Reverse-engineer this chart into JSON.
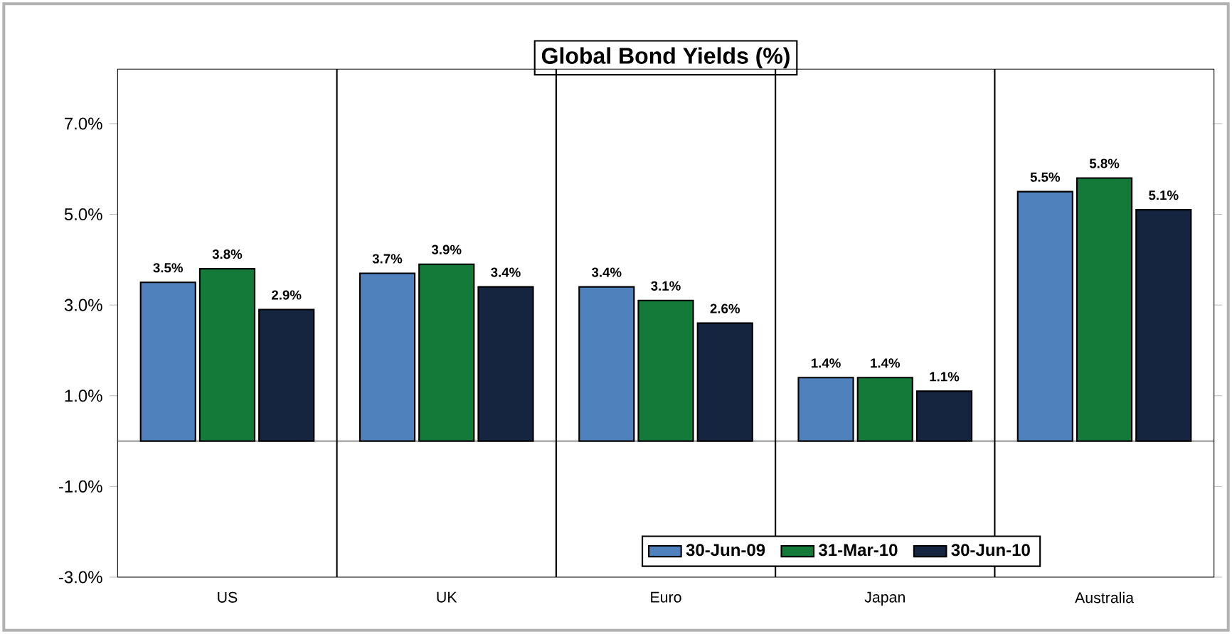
{
  "chart_data": {
    "type": "bar",
    "title": "Global Bond Yields (%)",
    "categories": [
      "US",
      "UK",
      "Euro",
      "Japan",
      "Australia"
    ],
    "series": [
      {
        "name": "30-Jun-09",
        "color": "#4f81bd",
        "values": [
          3.5,
          3.7,
          3.4,
          1.4,
          5.5
        ],
        "value_labels": [
          "3.5%",
          "3.7%",
          "3.4%",
          "1.4%",
          "5.5%"
        ]
      },
      {
        "name": "31-Mar-10",
        "color": "#137a3a",
        "values": [
          3.8,
          3.9,
          3.1,
          1.4,
          5.8
        ],
        "value_labels": [
          "3.8%",
          "3.9%",
          "3.1%",
          "1.4%",
          "5.8%"
        ]
      },
      {
        "name": "30-Jun-10",
        "color": "#15243f",
        "values": [
          2.9,
          3.4,
          2.6,
          1.1,
          5.1
        ],
        "value_labels": [
          "2.9%",
          "3.4%",
          "2.6%",
          "1.1%",
          "5.1%"
        ]
      }
    ],
    "ylim": [
      -3,
      8.2
    ],
    "yticks": [
      {
        "value": -3,
        "label": "-3.0%"
      },
      {
        "value": -1,
        "label": "-1.0%"
      },
      {
        "value": 1,
        "label": "1.0%"
      },
      {
        "value": 3,
        "label": "3.0%"
      },
      {
        "value": 5,
        "label": "5.0%"
      },
      {
        "value": 7,
        "label": "7.0%"
      }
    ],
    "grid": "x",
    "legend": "bottom"
  }
}
